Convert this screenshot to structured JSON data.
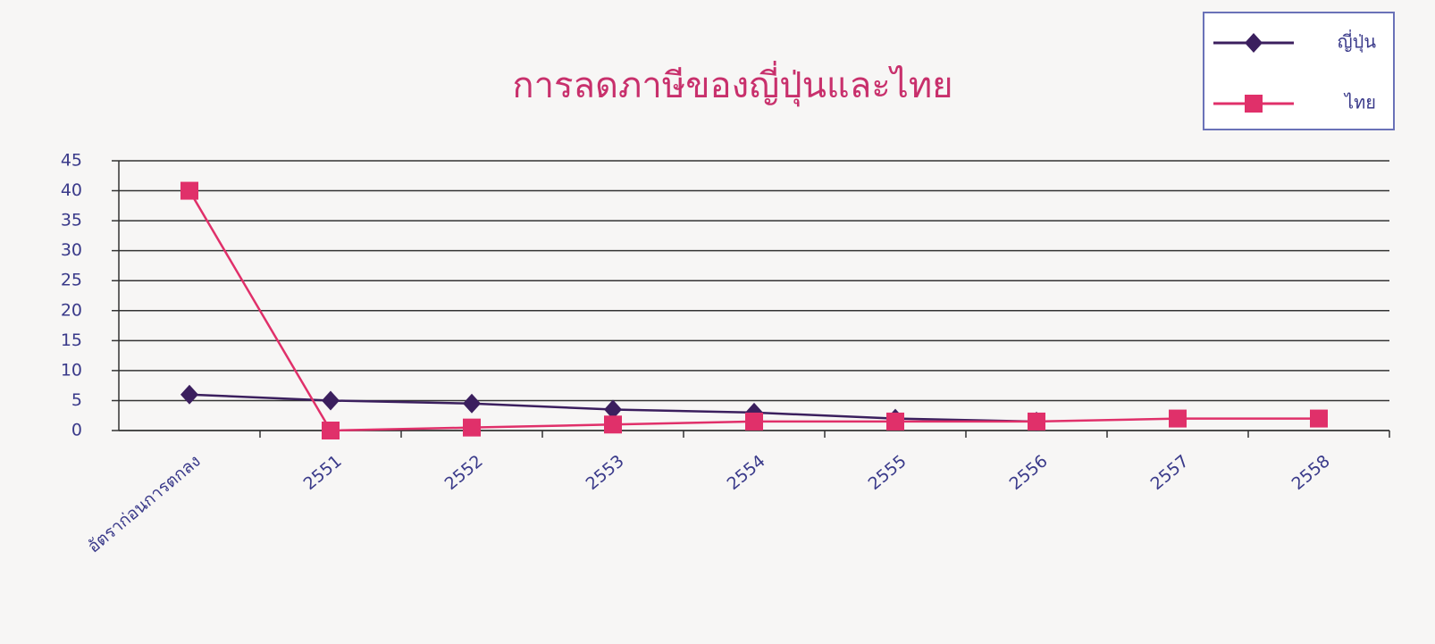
{
  "chart_data": {
    "type": "line",
    "title": "การลดภาษีของญี่ปุ่นและไทย",
    "categories": [
      "อัตราก่อนการตกลง",
      "2551",
      "2552",
      "2553",
      "2554",
      "2555",
      "2556",
      "2557",
      "2558"
    ],
    "series": [
      {
        "name": "ญี่ปุ่น",
        "color": "#3b1f5e",
        "marker": "diamond",
        "values": [
          6,
          5,
          4.5,
          3.5,
          3,
          2,
          1.5,
          null,
          null
        ]
      },
      {
        "name": "ไทย",
        "color": "#e0306a",
        "marker": "square",
        "values": [
          40,
          0,
          0.5,
          1,
          1.5,
          1.5,
          1.5,
          2,
          2
        ]
      }
    ],
    "ylim": [
      0,
      45
    ],
    "yticks": [
      0,
      5,
      10,
      15,
      20,
      25,
      30,
      35,
      40,
      45
    ],
    "grid": true,
    "legend": "top-right"
  }
}
